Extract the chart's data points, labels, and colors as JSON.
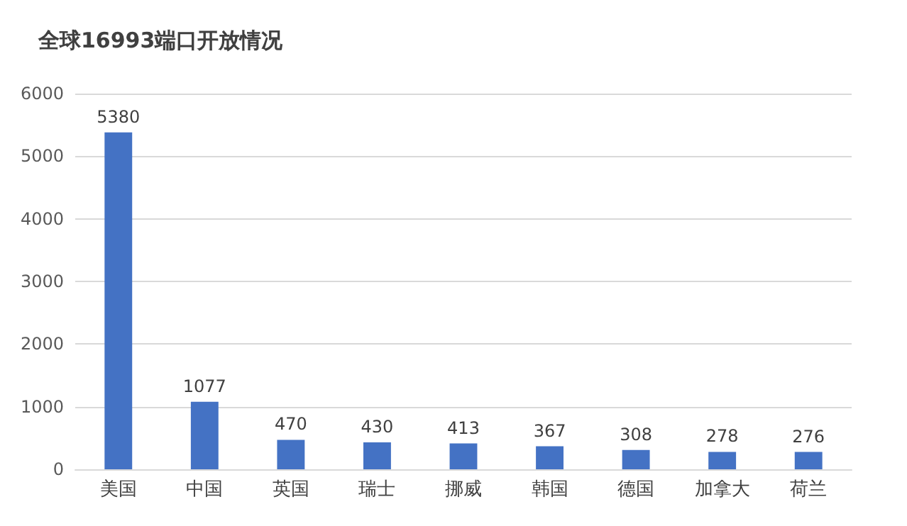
{
  "chart_data": {
    "type": "bar",
    "title": "全球16993端口开放情况",
    "categories": [
      "美国",
      "中国",
      "英国",
      "瑞士",
      "挪威",
      "韩国",
      "德国",
      "加拿大",
      "荷兰"
    ],
    "values": [
      5380,
      1077,
      470,
      430,
      413,
      367,
      308,
      278,
      276
    ],
    "color": "#4472c4",
    "ylim": [
      0,
      6000
    ],
    "yticks": [
      0,
      1000,
      2000,
      3000,
      4000,
      5000,
      6000
    ],
    "grid": "y",
    "data_labels": true
  }
}
